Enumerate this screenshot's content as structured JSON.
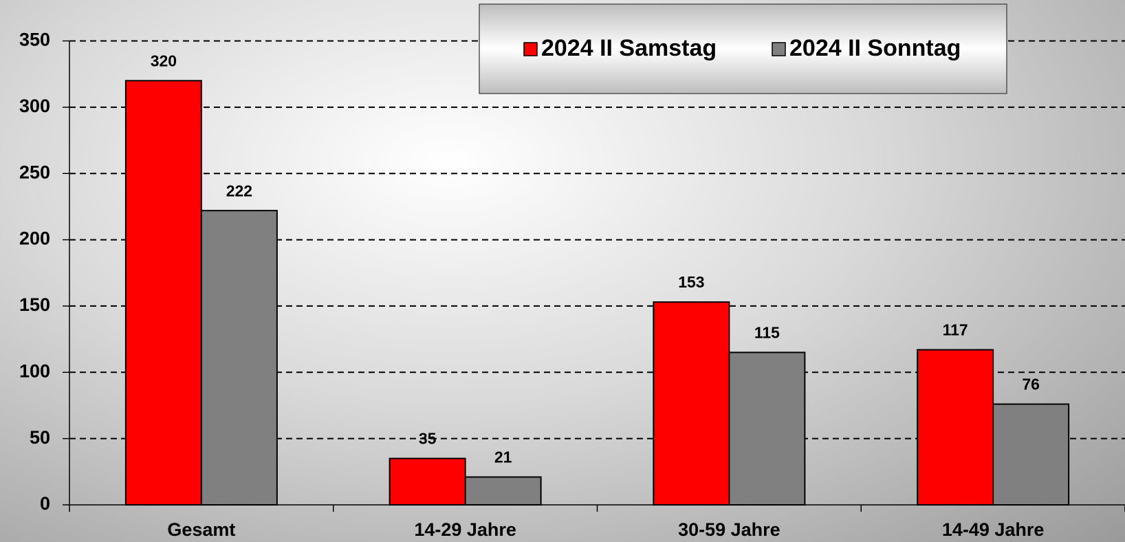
{
  "chart_data": {
    "type": "bar",
    "categories": [
      "Gesamt",
      "14-29 Jahre",
      "30-59 Jahre",
      "14-49 Jahre"
    ],
    "series": [
      {
        "name": "2024 II Samstag",
        "color": "#ff0000",
        "values": [
          320,
          35,
          153,
          117
        ]
      },
      {
        "name": "2024 II Sonntag",
        "color": "#808080",
        "values": [
          222,
          21,
          115,
          76
        ]
      }
    ],
    "ylim": [
      0,
      350
    ],
    "yticks": [
      0,
      50,
      100,
      150,
      200,
      250,
      300,
      350
    ],
    "grid": true,
    "legend": "top"
  }
}
